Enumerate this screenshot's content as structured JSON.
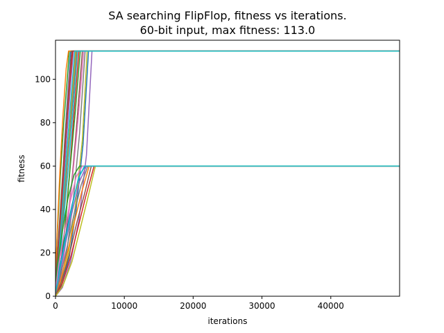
{
  "chart_data": {
    "type": "line",
    "title": [
      "SA searching FlipFlop, fitness vs iterations.",
      "60-bit input, max fitness: 113.0"
    ],
    "xlabel": "iterations",
    "ylabel": "fitness",
    "xlim": [
      0,
      50000
    ],
    "ylim": [
      0,
      118
    ],
    "xticks": [
      0,
      10000,
      20000,
      30000,
      40000
    ],
    "xtick_labels": [
      "0",
      "10000",
      "20000",
      "30000",
      "40000"
    ],
    "yticks": [
      0,
      20,
      40,
      60,
      80,
      100
    ],
    "ytick_labels": [
      "0",
      "20",
      "40",
      "60",
      "80",
      "100"
    ],
    "grid": false,
    "legend": "none",
    "colors": [
      "#1f77b4",
      "#ff7f0e",
      "#2ca02c",
      "#d62728",
      "#9467bd",
      "#8c564b",
      "#e377c2",
      "#7f7f7f",
      "#bcbd22",
      "#17becf"
    ],
    "series": [
      {
        "x": [
          0,
          300,
          800,
          1300,
          1800,
          2200,
          50000
        ],
        "values": [
          3,
          15,
          40,
          70,
          95,
          113,
          113
        ]
      },
      {
        "x": [
          0,
          500,
          1100,
          1700,
          2300,
          2900,
          50000
        ],
        "values": [
          1,
          12,
          35,
          60,
          88,
          113,
          113
        ]
      },
      {
        "x": [
          0,
          200,
          700,
          1200,
          1700,
          2000,
          50000
        ],
        "values": [
          5,
          25,
          55,
          80,
          100,
          113,
          113
        ]
      },
      {
        "x": [
          0,
          600,
          1300,
          2000,
          2700,
          3400,
          50000
        ],
        "values": [
          2,
          10,
          30,
          55,
          85,
          113,
          113
        ]
      },
      {
        "x": [
          0,
          400,
          1000,
          1600,
          2200,
          2600,
          50000
        ],
        "values": [
          4,
          20,
          45,
          72,
          98,
          113,
          113
        ]
      },
      {
        "x": [
          0,
          700,
          1500,
          2300,
          3100,
          3900,
          50000
        ],
        "values": [
          1,
          8,
          28,
          50,
          80,
          113,
          113
        ]
      },
      {
        "x": [
          0,
          350,
          900,
          1450,
          2000,
          2400,
          50000
        ],
        "values": [
          6,
          22,
          48,
          75,
          102,
          113,
          113
        ]
      },
      {
        "x": [
          0,
          800,
          1700,
          2600,
          3500,
          4300,
          50000
        ],
        "values": [
          0,
          6,
          22,
          45,
          75,
          113,
          113
        ]
      },
      {
        "x": [
          0,
          450,
          1100,
          1800,
          2500,
          3000,
          50000
        ],
        "values": [
          3,
          18,
          42,
          68,
          93,
          113,
          113
        ]
      },
      {
        "x": [
          0,
          550,
          1250,
          1950,
          2650,
          3200,
          50000
        ],
        "values": [
          2,
          14,
          38,
          62,
          90,
          113,
          113
        ]
      },
      {
        "x": [
          0,
          900,
          2000,
          3000,
          4000,
          4800,
          50000
        ],
        "values": [
          0,
          5,
          18,
          40,
          70,
          113,
          113
        ]
      },
      {
        "x": [
          0,
          250,
          650,
          1100,
          1550,
          1900,
          50000
        ],
        "values": [
          8,
          30,
          58,
          84,
          105,
          113,
          113
        ]
      },
      {
        "x": [
          0,
          650,
          1400,
          2100,
          2900,
          3600,
          50000
        ],
        "values": [
          1,
          9,
          32,
          58,
          86,
          113,
          113
        ]
      },
      {
        "x": [
          0,
          380,
          950,
          1500,
          2100,
          2500,
          50000
        ],
        "values": [
          4,
          19,
          46,
          74,
          99,
          113,
          113
        ]
      },
      {
        "x": [
          0,
          1000,
          2200,
          3400,
          4500,
          5300,
          50000
        ],
        "values": [
          0,
          4,
          16,
          35,
          65,
          113,
          113
        ]
      },
      {
        "x": [
          0,
          300,
          850,
          1400,
          1950,
          2350,
          50000
        ],
        "values": [
          5,
          21,
          47,
          73,
          97,
          113,
          113
        ]
      },
      {
        "x": [
          0,
          700,
          1550,
          2400,
          3300,
          4100,
          50000
        ],
        "values": [
          1,
          7,
          26,
          52,
          82,
          113,
          113
        ]
      },
      {
        "x": [
          0,
          480,
          1150,
          1850,
          2550,
          3100,
          50000
        ],
        "values": [
          3,
          16,
          40,
          66,
          92,
          113,
          113
        ]
      },
      {
        "x": [
          0,
          850,
          1900,
          2900,
          3900,
          4600,
          50000
        ],
        "values": [
          0,
          6,
          20,
          42,
          72,
          113,
          113
        ]
      },
      {
        "x": [
          0,
          420,
          1050,
          1700,
          2350,
          2800,
          50000
        ],
        "values": [
          4,
          17,
          43,
          69,
          95,
          113,
          113
        ]
      },
      {
        "x": [
          0,
          500,
          1400,
          2400,
          3400,
          4300,
          50000
        ],
        "values": [
          2,
          11,
          27,
          42,
          55,
          60,
          60
        ]
      },
      {
        "x": [
          0,
          800,
          1800,
          2800,
          3800,
          4900,
          50000
        ],
        "values": [
          0,
          8,
          21,
          35,
          48,
          60,
          60
        ]
      },
      {
        "x": [
          0,
          300,
          1000,
          1800,
          2700,
          3500,
          50000
        ],
        "values": [
          4,
          15,
          30,
          45,
          56,
          60,
          60
        ]
      },
      {
        "x": [
          0,
          1000,
          2200,
          3300,
          4400,
          5600,
          50000
        ],
        "values": [
          0,
          6,
          18,
          32,
          46,
          60,
          60
        ]
      },
      {
        "x": [
          0,
          600,
          1500,
          2500,
          3500,
          4500,
          50000
        ],
        "values": [
          1,
          10,
          25,
          40,
          53,
          60,
          60
        ]
      },
      {
        "x": [
          0,
          900,
          2000,
          3100,
          4200,
          5200,
          50000
        ],
        "values": [
          0,
          7,
          19,
          34,
          47,
          60,
          60
        ]
      },
      {
        "x": [
          0,
          400,
          1200,
          2100,
          3000,
          3900,
          50000
        ],
        "values": [
          3,
          13,
          28,
          43,
          55,
          60,
          60
        ]
      },
      {
        "x": [
          0,
          700,
          1700,
          2700,
          3700,
          4700,
          50000
        ],
        "values": [
          1,
          9,
          23,
          38,
          51,
          60,
          60
        ]
      },
      {
        "x": [
          0,
          1100,
          2400,
          3500,
          4600,
          5800,
          50000
        ],
        "values": [
          0,
          5,
          16,
          30,
          44,
          60,
          60
        ]
      },
      {
        "x": [
          0,
          550,
          1450,
          2400,
          3300,
          4200,
          50000
        ],
        "values": [
          2,
          11,
          26,
          41,
          54,
          60,
          60
        ]
      }
    ]
  }
}
